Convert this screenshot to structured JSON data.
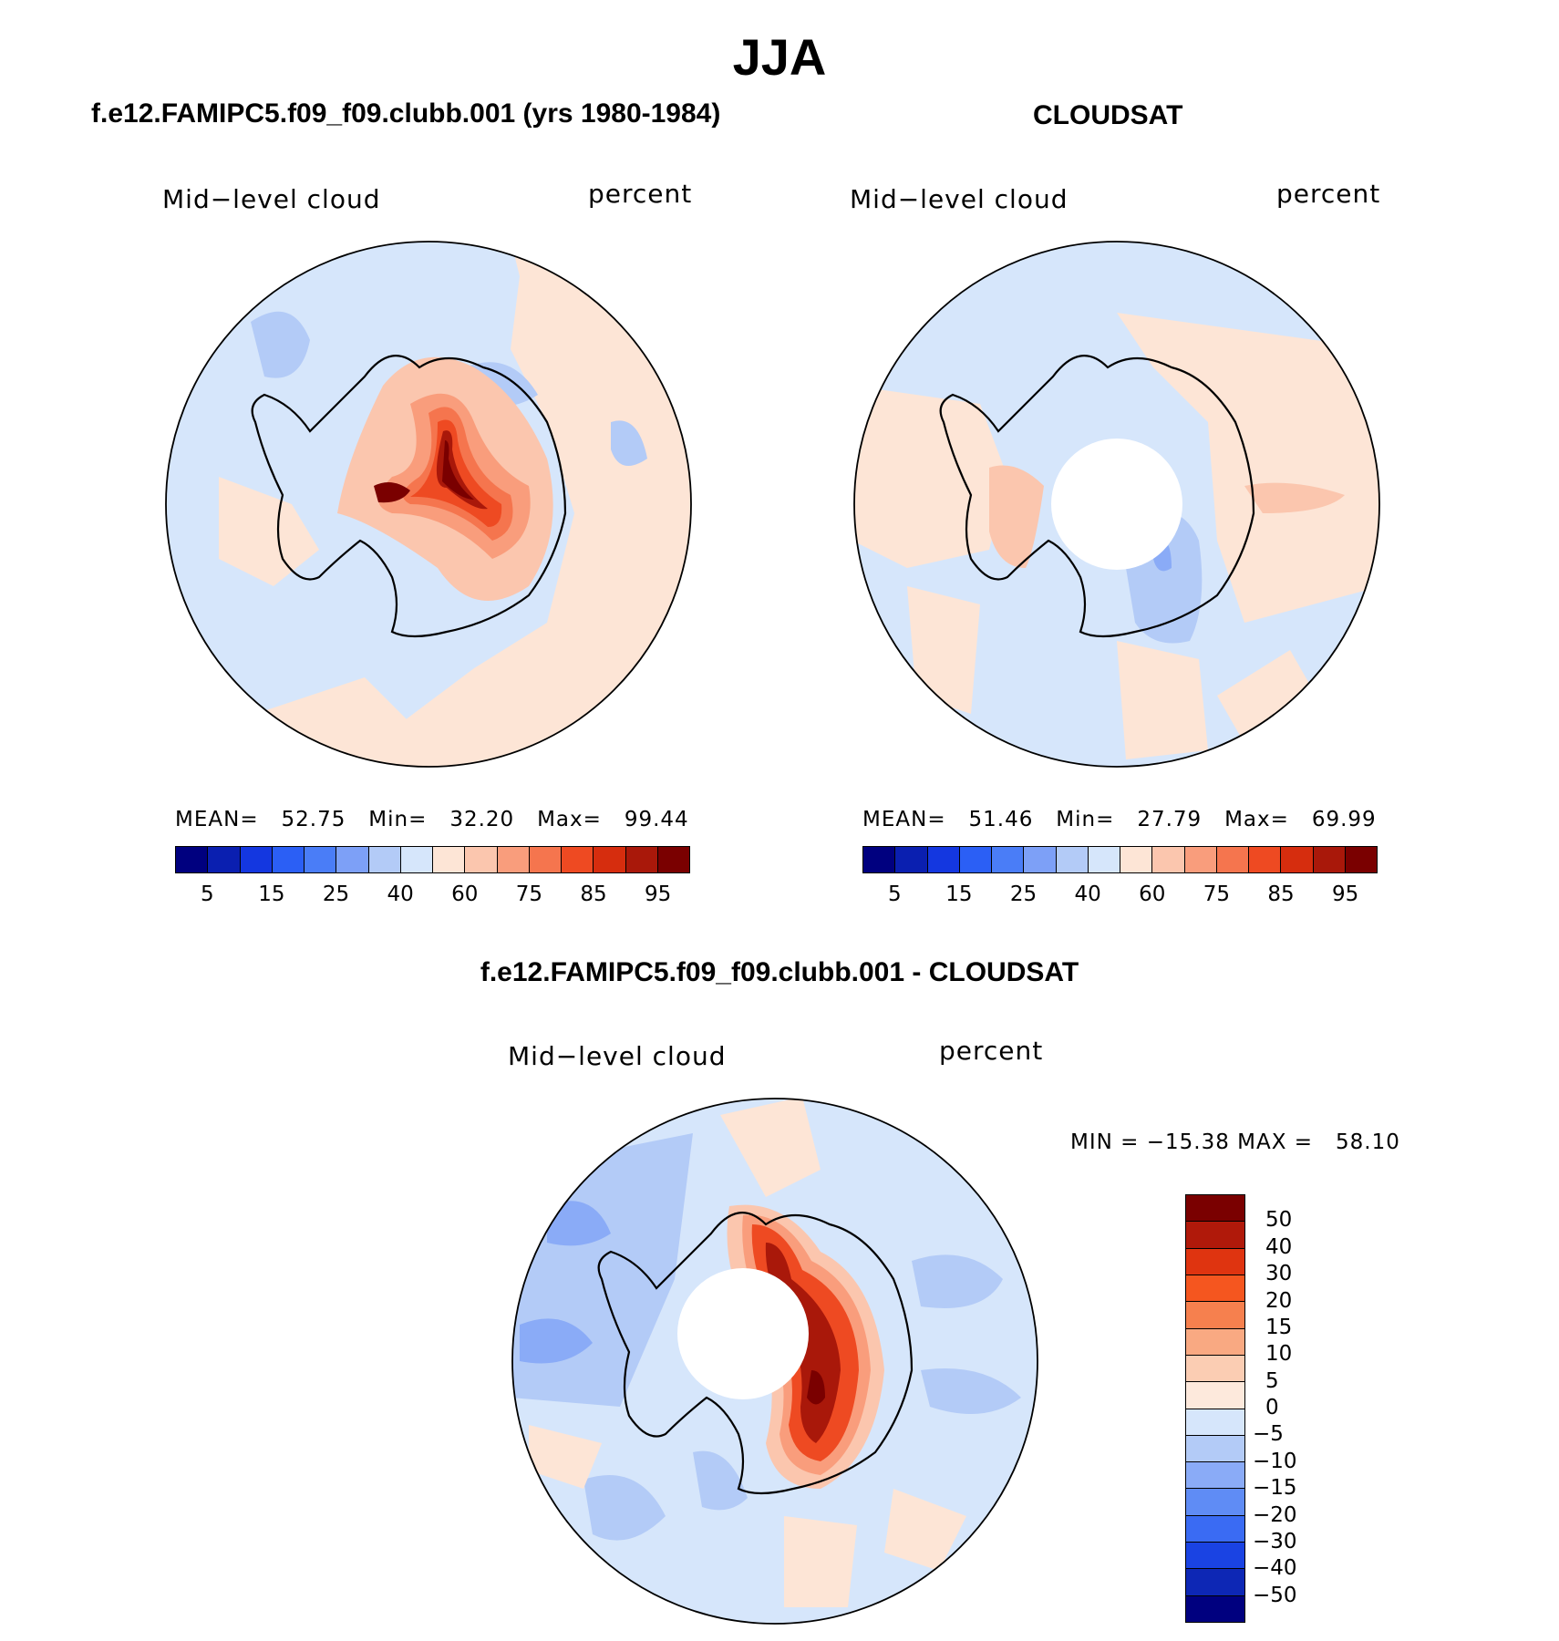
{
  "title": "JJA",
  "panels": {
    "model": {
      "title": "f.e12.FAMIPC5.f09_f09.clubb.001 (yrs 1980-1984)",
      "variable": "Mid−level cloud",
      "units": "percent",
      "stats": "MEAN=   52.75   Min=   32.20   Max=   99.44"
    },
    "obs": {
      "title": "CLOUDSAT",
      "variable": "Mid−level cloud",
      "units": "percent",
      "stats": "MEAN=   51.46   Min=   27.79   Max=   69.99"
    },
    "diff": {
      "title": "f.e12.FAMIPC5.f09_f09.clubb.001 - CLOUDSAT",
      "variable": "Mid−level cloud",
      "units": "percent",
      "stats": "MIN = −15.38 MAX =   58.10"
    }
  },
  "colorbar_abs": {
    "colors": [
      "#00007f",
      "#0a1fb0",
      "#1437e0",
      "#2b5ff5",
      "#4a7df7",
      "#7da0f7",
      "#b3cbf7",
      "#d6e6fb",
      "#fde5d6",
      "#fbc6ae",
      "#f99d7c",
      "#f5754e",
      "#ee4a22",
      "#d62d0e",
      "#a9180a",
      "#7a0000"
    ],
    "tick_labels": [
      "5",
      "15",
      "25",
      "40",
      "60",
      "75",
      "85",
      "95"
    ]
  },
  "colorbar_diff": {
    "colors": [
      "#7a0000",
      "#b0190a",
      "#df3410",
      "#f5561f",
      "#f6804e",
      "#f9a982",
      "#fbcdb3",
      "#fde9dc",
      "#d6e6fb",
      "#b3cbf7",
      "#8aabf7",
      "#5f8cf5",
      "#3a6bf3",
      "#1a43e3",
      "#0d27b5",
      "#00007f"
    ],
    "tick_labels": [
      "50",
      "40",
      "30",
      "20",
      "15",
      "10",
      "5",
      "0",
      "−5",
      "−10",
      "−15",
      "−20",
      "−30",
      "−40",
      "−50"
    ]
  },
  "map_colors": {
    "light_blue": "#d6e6fb",
    "blue": "#b3cbf7",
    "mid_blue": "#8aabf7",
    "peach": "#fde5d6",
    "light_salmon": "#fbc6ae",
    "salmon": "#f99d7c",
    "orange": "#f5754e",
    "red": "#ee4a22",
    "dark_red": "#a9180a",
    "darkest": "#7a0000"
  }
}
